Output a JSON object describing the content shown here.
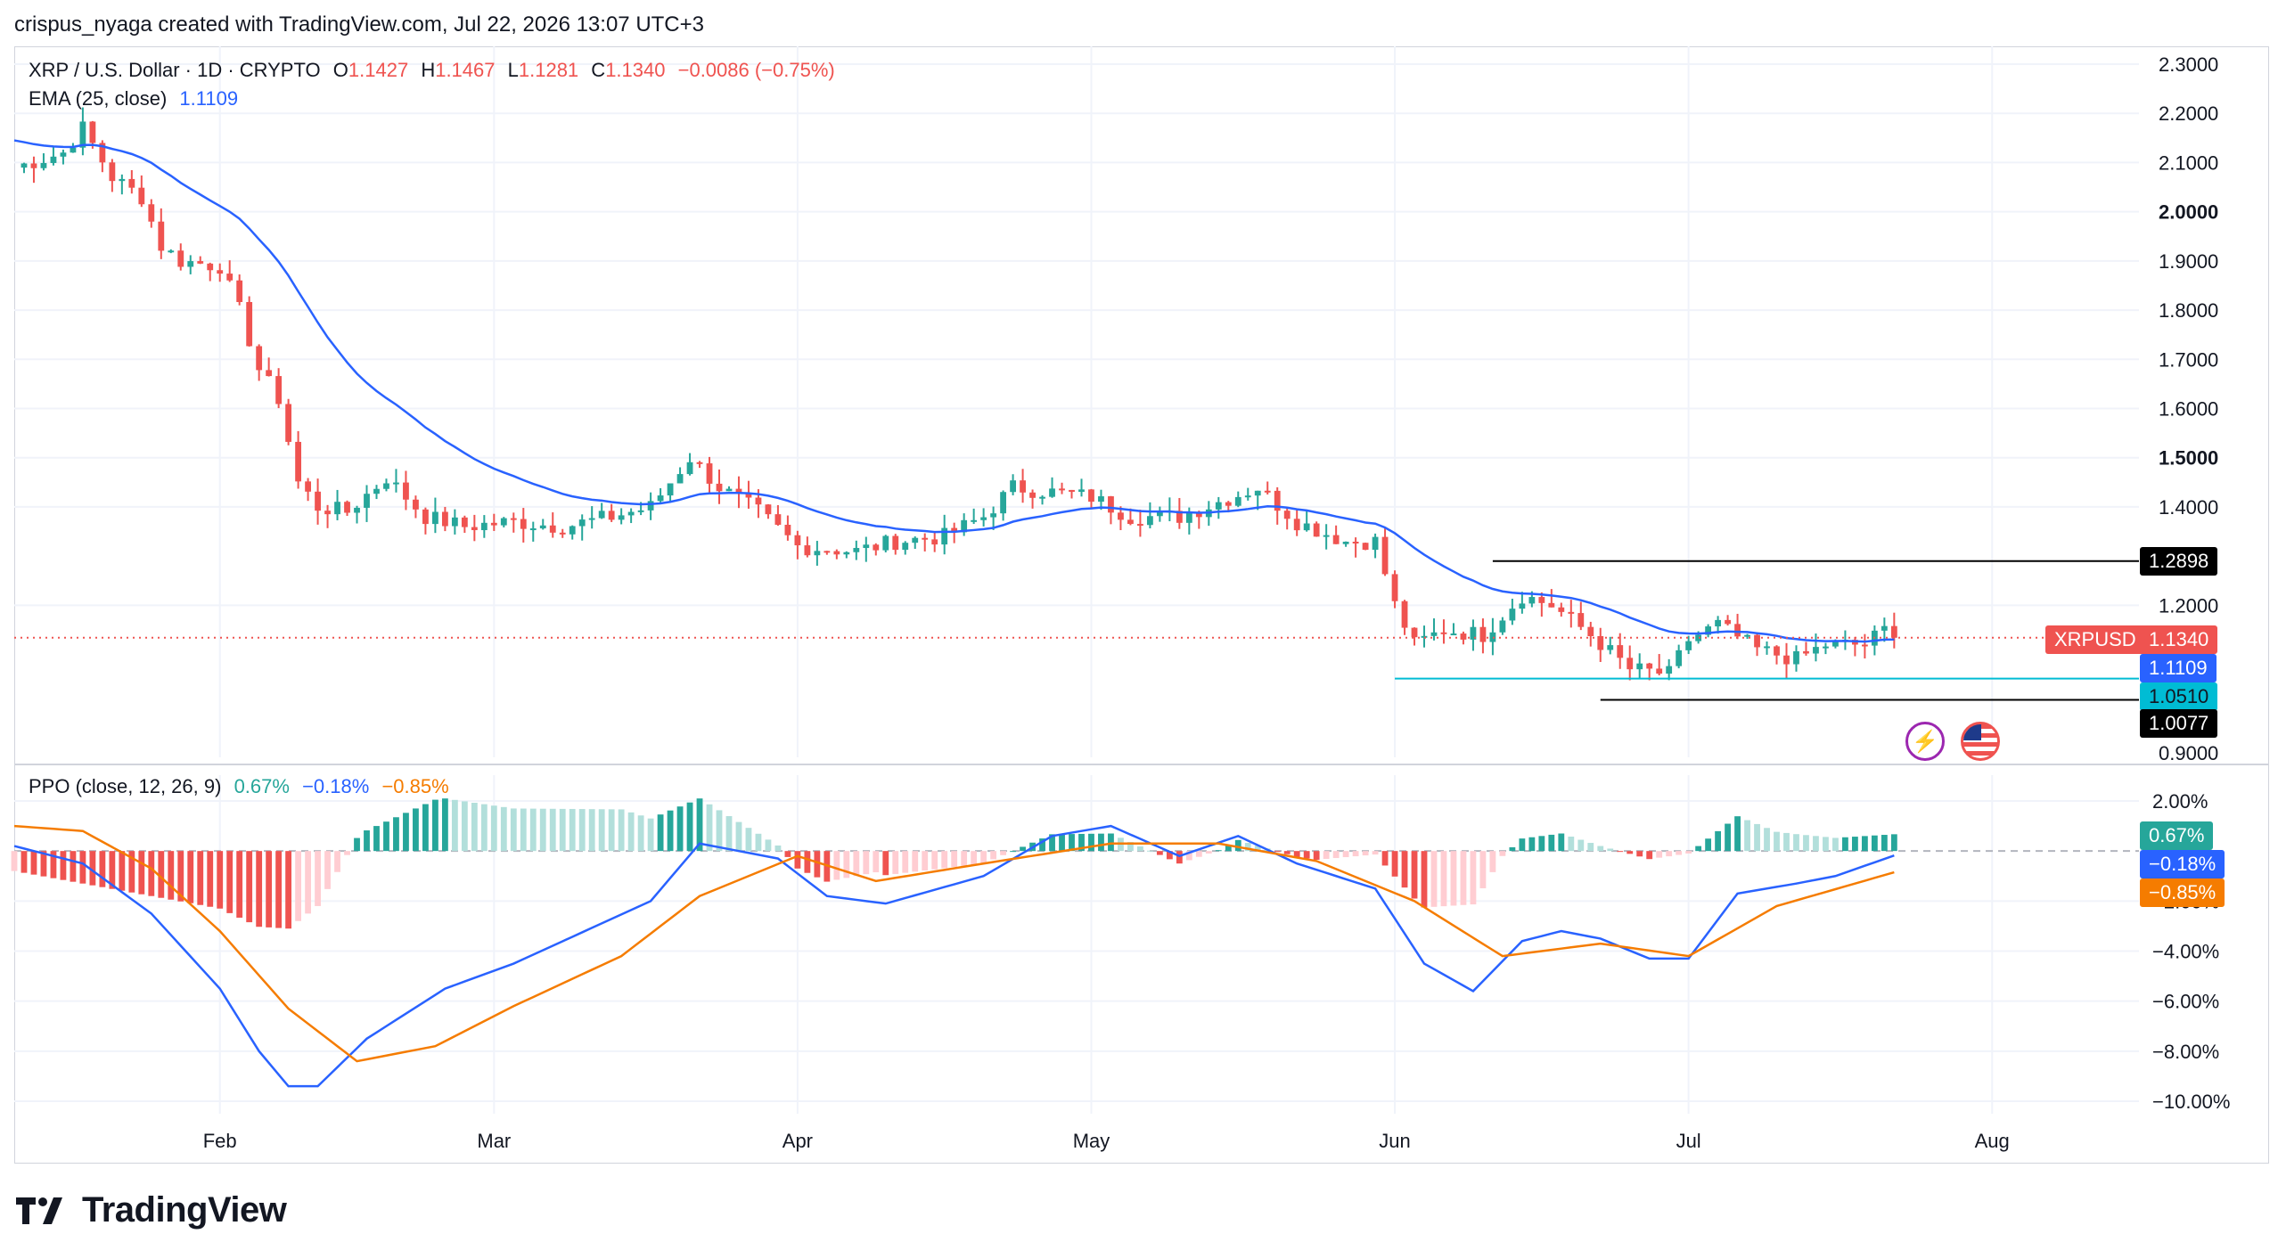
{
  "header": {
    "caption": "crispus_nyaga created with TradingView.com, Jul 22, 2026 13:07 UTC+3"
  },
  "legend": {
    "symbol": "XRP / U.S. Dollar · 1D · CRYPTO",
    "o_label": "O",
    "o_value": "1.1427",
    "h_label": "H",
    "h_value": "1.1467",
    "l_label": "L",
    "l_value": "1.1281",
    "c_label": "C",
    "c_value": "1.1340",
    "change": "−0.0086 (−0.75%)",
    "ema_label": "EMA (25, close)",
    "ema_value": "1.1109"
  },
  "ppo_legend": {
    "label": "PPO (close, 12, 26, 9)",
    "hist": "0.67%",
    "ppo": "−0.18%",
    "signal": "−0.85%"
  },
  "price_axis": [
    "2.3000",
    "2.2000",
    "2.1000",
    "2.0000",
    "1.9000",
    "1.8000",
    "1.7000",
    "1.6000",
    "1.5000",
    "1.4000",
    "1.2000",
    "0.9000"
  ],
  "bold_price_ticks": [
    "2.0000",
    "1.5000"
  ],
  "ppo_axis": [
    "2.00%",
    "−2.00%",
    "−4.00%",
    "−6.00%",
    "−8.00%",
    "−10.00%"
  ],
  "time_axis": [
    "Feb",
    "Mar",
    "Apr",
    "May",
    "Jun",
    "Jul",
    "Aug"
  ],
  "tags": {
    "level_high": "1.2898",
    "symbol": "XRPUSD",
    "last": "1.1340",
    "ema": "1.1109",
    "support": "1.0510",
    "level_low": "1.0077",
    "ppo_hist": "0.67%",
    "ppo": "−0.18%",
    "signal": "−0.85%"
  },
  "colors": {
    "up": "#26a69a",
    "down": "#ef5350",
    "ema": "#2962ff",
    "ppo": "#2962ff",
    "signal": "#f57c00",
    "support": "#00bcd4",
    "hist_up_strong": "#26a69a",
    "hist_up_weak": "#b2dfdb",
    "hist_down_strong": "#ef5350",
    "hist_down_weak": "#ffcdd2"
  },
  "footer": {
    "brand": "TradingView"
  },
  "chart_data": [
    {
      "type": "candlestick",
      "title": "XRP / U.S. Dollar · 1D · CRYPTO",
      "ylim": [
        0.9,
        2.3
      ],
      "x_range": [
        "Jan 11",
        "Aug 16"
      ],
      "horizontal_levels": [
        1.2898,
        1.051,
        1.0077
      ],
      "last_close": 1.134,
      "anchors": [
        {
          "date": "Jan 11",
          "close": 2.09
        },
        {
          "date": "Jan 16",
          "close": 2.12
        },
        {
          "date": "Jan 18",
          "close": 2.17
        },
        {
          "date": "Jan 21",
          "close": 2.07
        },
        {
          "date": "Jan 24",
          "close": 2.03
        },
        {
          "date": "Jan 26",
          "close": 1.93
        },
        {
          "date": "Jan 28",
          "close": 1.9
        },
        {
          "date": "Feb 1",
          "close": 1.89
        },
        {
          "date": "Feb 3",
          "close": 1.8
        },
        {
          "date": "Feb 5",
          "close": 1.68
        },
        {
          "date": "Feb 7",
          "close": 1.62
        },
        {
          "date": "Feb 9",
          "close": 1.45
        },
        {
          "date": "Feb 11",
          "close": 1.4
        },
        {
          "date": "Feb 14",
          "close": 1.39
        },
        {
          "date": "Feb 18",
          "close": 1.46
        },
        {
          "date": "Feb 22",
          "close": 1.38
        },
        {
          "date": "Feb 26",
          "close": 1.36
        },
        {
          "date": "Mar 3",
          "close": 1.37
        },
        {
          "date": "Mar 8",
          "close": 1.36
        },
        {
          "date": "Mar 13",
          "close": 1.38
        },
        {
          "date": "Mar 17",
          "close": 1.4
        },
        {
          "date": "Mar 21",
          "close": 1.5
        },
        {
          "date": "Mar 24",
          "close": 1.44
        },
        {
          "date": "Mar 28",
          "close": 1.39
        },
        {
          "date": "Apr 1",
          "close": 1.32
        },
        {
          "date": "Apr 7",
          "close": 1.31
        },
        {
          "date": "Apr 11",
          "close": 1.33
        },
        {
          "date": "Apr 16",
          "close": 1.34
        },
        {
          "date": "Apr 20",
          "close": 1.38
        },
        {
          "date": "Apr 23",
          "close": 1.44
        },
        {
          "date": "Apr 27",
          "close": 1.43
        },
        {
          "date": "May 1",
          "close": 1.42
        },
        {
          "date": "May 5",
          "close": 1.38
        },
        {
          "date": "May 10",
          "close": 1.38
        },
        {
          "date": "May 14",
          "close": 1.41
        },
        {
          "date": "May 18",
          "close": 1.44
        },
        {
          "date": "May 22",
          "close": 1.37
        },
        {
          "date": "May 27",
          "close": 1.33
        },
        {
          "date": "May 30",
          "close": 1.33
        },
        {
          "date": "Jun 1",
          "close": 1.2
        },
        {
          "date": "Jun 3",
          "close": 1.12
        },
        {
          "date": "Jun 6",
          "close": 1.15
        },
        {
          "date": "Jun 10",
          "close": 1.14
        },
        {
          "date": "Jun 14",
          "close": 1.22
        },
        {
          "date": "Jun 17",
          "close": 1.2
        },
        {
          "date": "Jun 21",
          "close": 1.14
        },
        {
          "date": "Jun 25",
          "close": 1.07
        },
        {
          "date": "Jun 29",
          "close": 1.06
        },
        {
          "date": "Jul 1",
          "close": 1.13
        },
        {
          "date": "Jul 4",
          "close": 1.16
        },
        {
          "date": "Jul 8",
          "close": 1.11
        },
        {
          "date": "Jul 12",
          "close": 1.09
        },
        {
          "date": "Jul 15",
          "close": 1.12
        },
        {
          "date": "Jul 19",
          "close": 1.12
        },
        {
          "date": "Jul 21",
          "close": 1.15
        },
        {
          "date": "Jul 22",
          "close": 1.134
        }
      ],
      "indicator": {
        "name": "EMA (25, close)",
        "last": 1.1109
      }
    },
    {
      "type": "line",
      "title": "PPO (close, 12, 26, 9)",
      "ylim": [
        -10,
        2
      ],
      "series": [
        {
          "name": "PPO",
          "points": [
            {
              "date": "Jan 11",
              "value": 0.2
            },
            {
              "date": "Jan 18",
              "value": -0.5
            },
            {
              "date": "Jan 25",
              "value": -2.5
            },
            {
              "date": "Feb 1",
              "value": -5.5
            },
            {
              "date": "Feb 5",
              "value": -8.0
            },
            {
              "date": "Feb 8",
              "value": -9.4
            },
            {
              "date": "Feb 11",
              "value": -9.4
            },
            {
              "date": "Feb 16",
              "value": -7.5
            },
            {
              "date": "Feb 24",
              "value": -5.5
            },
            {
              "date": "Mar 3",
              "value": -4.5
            },
            {
              "date": "Mar 17",
              "value": -2.0
            },
            {
              "date": "Mar 22",
              "value": 0.3
            },
            {
              "date": "Mar 30",
              "value": -0.3
            },
            {
              "date": "Apr 4",
              "value": -1.8
            },
            {
              "date": "Apr 10",
              "value": -2.1
            },
            {
              "date": "Apr 20",
              "value": -1.0
            },
            {
              "date": "Apr 27",
              "value": 0.6
            },
            {
              "date": "May 3",
              "value": 1.0
            },
            {
              "date": "May 10",
              "value": -0.2
            },
            {
              "date": "May 16",
              "value": 0.6
            },
            {
              "date": "May 22",
              "value": -0.5
            },
            {
              "date": "May 30",
              "value": -1.5
            },
            {
              "date": "Jun 4",
              "value": -4.5
            },
            {
              "date": "Jun 9",
              "value": -5.6
            },
            {
              "date": "Jun 14",
              "value": -3.6
            },
            {
              "date": "Jun 18",
              "value": -3.2
            },
            {
              "date": "Jun 22",
              "value": -3.5
            },
            {
              "date": "Jun 27",
              "value": -4.3
            },
            {
              "date": "Jul 1",
              "value": -4.3
            },
            {
              "date": "Jul 6",
              "value": -1.7
            },
            {
              "date": "Jul 12",
              "value": -1.3
            },
            {
              "date": "Jul 16",
              "value": -1.0
            },
            {
              "date": "Jul 22",
              "value": -0.18
            }
          ]
        },
        {
          "name": "Signal",
          "points": [
            {
              "date": "Jan 11",
              "value": 1.0
            },
            {
              "date": "Jan 18",
              "value": 0.8
            },
            {
              "date": "Jan 25",
              "value": -0.7
            },
            {
              "date": "Feb 1",
              "value": -3.2
            },
            {
              "date": "Feb 8",
              "value": -6.3
            },
            {
              "date": "Feb 15",
              "value": -8.4
            },
            {
              "date": "Feb 23",
              "value": -7.8
            },
            {
              "date": "Mar 3",
              "value": -6.2
            },
            {
              "date": "Mar 14",
              "value": -4.2
            },
            {
              "date": "Mar 22",
              "value": -1.8
            },
            {
              "date": "Apr 1",
              "value": -0.2
            },
            {
              "date": "Apr 9",
              "value": -1.2
            },
            {
              "date": "Apr 20",
              "value": -0.5
            },
            {
              "date": "May 3",
              "value": 0.3
            },
            {
              "date": "May 14",
              "value": 0.3
            },
            {
              "date": "May 24",
              "value": -0.4
            },
            {
              "date": "Jun 3",
              "value": -2.0
            },
            {
              "date": "Jun 12",
              "value": -4.2
            },
            {
              "date": "Jun 22",
              "value": -3.7
            },
            {
              "date": "Jul 1",
              "value": -4.2
            },
            {
              "date": "Jul 10",
              "value": -2.2
            },
            {
              "date": "Jul 22",
              "value": -0.85
            }
          ]
        }
      ],
      "histogram": {
        "name": "Histogram",
        "last": 0.67
      }
    }
  ]
}
